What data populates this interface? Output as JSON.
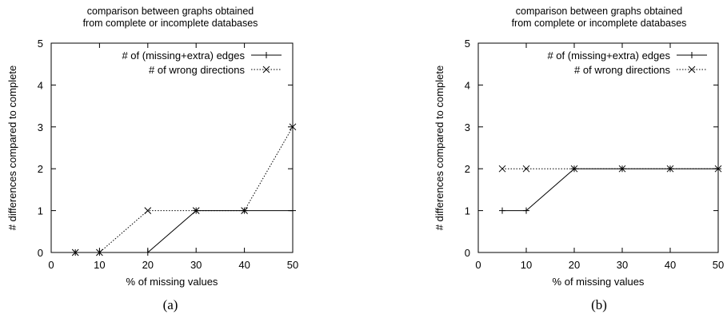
{
  "chart_data": [
    {
      "type": "line",
      "panel_label": "(a)",
      "title": "comparison between graphs obtained\nfrom complete or incomplete databases",
      "xlabel": "% of missing values",
      "ylabel": "# differences compared to complete",
      "xlim": [
        0,
        50
      ],
      "ylim": [
        0,
        5
      ],
      "xticks": [
        0,
        10,
        20,
        30,
        40,
        50
      ],
      "yticks": [
        0,
        1,
        2,
        3,
        4,
        5
      ],
      "legend_position": "top-right",
      "grid": false,
      "series": [
        {
          "name": "# of (missing+extra) edges",
          "style": "solid",
          "marker": "plus",
          "x": [
            5,
            10,
            20,
            30,
            40,
            50
          ],
          "y": [
            0,
            0,
            0,
            1,
            1,
            1
          ]
        },
        {
          "name": "# of wrong directions",
          "style": "dotted",
          "marker": "cross",
          "x": [
            5,
            10,
            20,
            30,
            40,
            50
          ],
          "y": [
            0,
            0,
            1,
            1,
            1,
            3
          ]
        }
      ]
    },
    {
      "type": "line",
      "panel_label": "(b)",
      "title": "comparison between graphs obtained\nfrom complete or incomplete databases",
      "xlabel": "% of missing values",
      "ylabel": "# differences compared to complete",
      "xlim": [
        0,
        50
      ],
      "ylim": [
        0,
        5
      ],
      "xticks": [
        0,
        10,
        20,
        30,
        40,
        50
      ],
      "yticks": [
        0,
        1,
        2,
        3,
        4,
        5
      ],
      "legend_position": "top-right",
      "grid": false,
      "series": [
        {
          "name": "# of (missing+extra) edges",
          "style": "solid",
          "marker": "plus",
          "x": [
            5,
            10,
            20,
            30,
            40,
            50
          ],
          "y": [
            1,
            1,
            2,
            2,
            2,
            2
          ]
        },
        {
          "name": "# of wrong directions",
          "style": "dotted",
          "marker": "cross",
          "x": [
            5,
            10,
            20,
            30,
            40,
            50
          ],
          "y": [
            2,
            2,
            2,
            2,
            2,
            2
          ]
        }
      ]
    }
  ]
}
